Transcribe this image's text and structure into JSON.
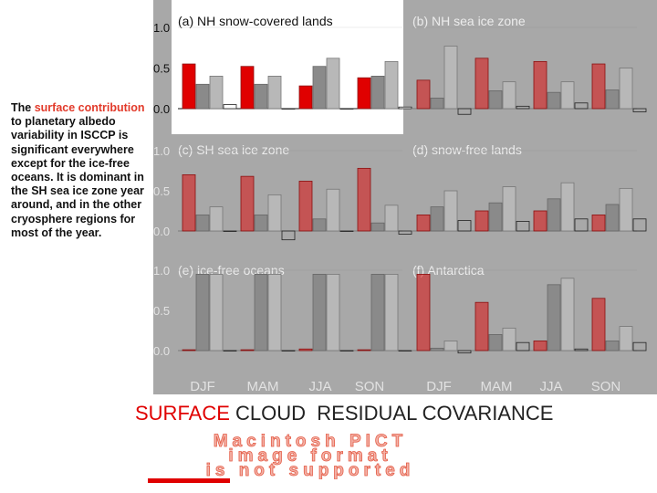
{
  "caption": {
    "before": "The ",
    "highlight": "surface contribution",
    "after": " to planetary albedo variability in ISCCP is significant everywhere except for the ice-free oceans.  It is dominant in the SH sea ice zone year around, and in the other cryosphere regions for most of the year."
  },
  "legend": {
    "surface": "SURFACE",
    "cloud": "CLOUD",
    "residual": "RESIDUAL",
    "covariance": "COVARIANCE"
  },
  "placeholder_lines": [
    "Macintosh PICT",
    "image format",
    "is not supported"
  ],
  "colors": {
    "surface": "#e00000",
    "cloud": "#8a8a8a",
    "residual": "#b8b8b8",
    "covariance": "#ffffff",
    "panel_bg": "#a8a8a8",
    "panel_face": "#ffffff"
  },
  "chart_data": {
    "type": "bar",
    "categories": [
      "DJF",
      "MAM",
      "JJA",
      "SON"
    ],
    "y_ticks": [
      "1.0",
      "0.5",
      "0.0"
    ],
    "ylim": [
      -0.1,
      1.1
    ],
    "series_order": [
      "surface",
      "cloud",
      "residual",
      "covariance"
    ],
    "panels": [
      {
        "title": "(a) NH snow-covered lands",
        "values": [
          [
            0.55,
            0.3,
            0.4,
            0.05
          ],
          [
            0.52,
            0.3,
            0.4,
            0.0
          ],
          [
            0.28,
            0.52,
            0.62,
            0.0
          ],
          [
            0.38,
            0.4,
            0.58,
            0.02
          ]
        ]
      },
      {
        "title": "(b) NH sea ice zone",
        "values": [
          [
            0.35,
            0.13,
            0.77,
            -0.07
          ],
          [
            0.62,
            0.22,
            0.33,
            0.03
          ],
          [
            0.58,
            0.2,
            0.33,
            0.07
          ],
          [
            0.55,
            0.23,
            0.5,
            -0.04
          ]
        ]
      },
      {
        "title": "(c) SH sea ice zone",
        "values": [
          [
            0.7,
            0.2,
            0.3,
            0.0
          ],
          [
            0.68,
            0.2,
            0.45,
            -0.11
          ],
          [
            0.62,
            0.15,
            0.52,
            0.0
          ],
          [
            0.78,
            0.1,
            0.32,
            -0.04
          ]
        ]
      },
      {
        "title": "(d) snow-free lands",
        "values": [
          [
            0.2,
            0.3,
            0.5,
            0.13
          ],
          [
            0.25,
            0.35,
            0.55,
            0.12
          ],
          [
            0.25,
            0.4,
            0.6,
            0.15
          ],
          [
            0.2,
            0.33,
            0.53,
            0.15
          ]
        ]
      },
      {
        "title": "(e) ice-free oceans",
        "values": [
          [
            0.01,
            0.95,
            0.95,
            0.0
          ],
          [
            0.01,
            0.95,
            0.95,
            0.0
          ],
          [
            0.02,
            0.95,
            0.95,
            0.0
          ],
          [
            0.01,
            0.95,
            0.95,
            0.0
          ]
        ]
      },
      {
        "title": "(f) Antarctica",
        "values": [
          [
            0.95,
            0.03,
            0.12,
            -0.03
          ],
          [
            0.6,
            0.2,
            0.28,
            0.1
          ],
          [
            0.12,
            0.82,
            0.9,
            0.02
          ],
          [
            0.65,
            0.12,
            0.3,
            0.1
          ]
        ]
      }
    ]
  }
}
